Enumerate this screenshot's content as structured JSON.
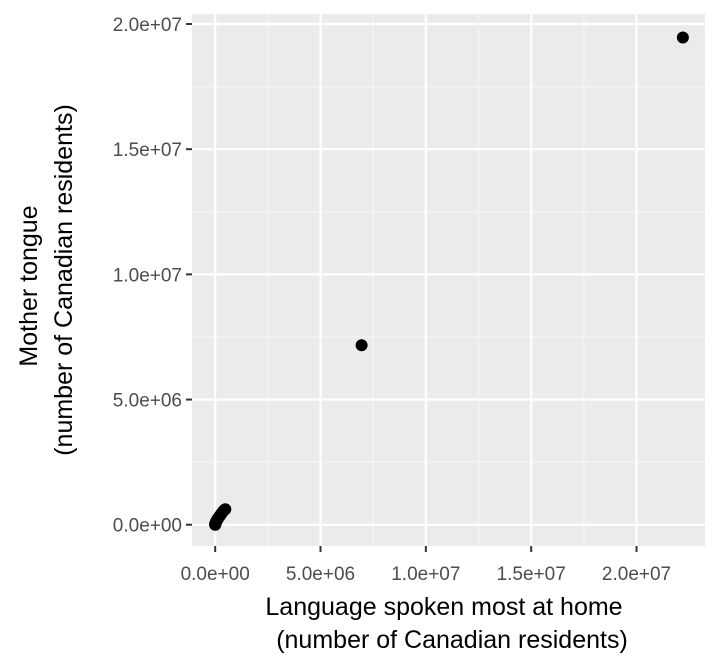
{
  "chart_data": {
    "type": "scatter",
    "title": "",
    "xlabel": [
      "Language spoken most at home",
      "(number of Canadian residents)"
    ],
    "ylabel": [
      "Mother tongue",
      "(number of Canadian residents)"
    ],
    "xlim": [
      -1100000,
      23250000
    ],
    "ylim": [
      -850000,
      20400000
    ],
    "x_ticks": [
      {
        "value": 0,
        "label": "0.0e+00"
      },
      {
        "value": 5000000,
        "label": "5.0e+06"
      },
      {
        "value": 10000000,
        "label": "1.0e+07"
      },
      {
        "value": 15000000,
        "label": "1.5e+07"
      },
      {
        "value": 20000000,
        "label": "2.0e+07"
      }
    ],
    "y_ticks": [
      {
        "value": 0,
        "label": "0.0e+00"
      },
      {
        "value": 5000000,
        "label": "5.0e+06"
      },
      {
        "value": 10000000,
        "label": "1.0e+07"
      },
      {
        "value": 15000000,
        "label": "1.5e+07"
      },
      {
        "value": 20000000,
        "label": "2.0e+07"
      }
    ],
    "grid": true,
    "colors": {
      "panel_background": "#ebebeb",
      "grid_major": "#ffffff",
      "grid_minor": "#f5f5f5",
      "point": "#000000",
      "tick_mark": "#333333"
    },
    "points": [
      {
        "x": 22200000,
        "y": 19460000
      },
      {
        "x": 6950000,
        "y": 7170000
      },
      {
        "x": 480000,
        "y": 620000
      },
      {
        "x": 420000,
        "y": 580000
      },
      {
        "x": 360000,
        "y": 520000
      },
      {
        "x": 300000,
        "y": 450000
      },
      {
        "x": 250000,
        "y": 390000
      },
      {
        "x": 200000,
        "y": 330000
      },
      {
        "x": 160000,
        "y": 280000
      },
      {
        "x": 120000,
        "y": 230000
      },
      {
        "x": 90000,
        "y": 190000
      },
      {
        "x": 60000,
        "y": 150000
      },
      {
        "x": 40000,
        "y": 110000
      },
      {
        "x": 25000,
        "y": 80000
      },
      {
        "x": 15000,
        "y": 55000
      },
      {
        "x": 10000,
        "y": 35000
      },
      {
        "x": 5000,
        "y": 20000
      },
      {
        "x": 2000,
        "y": 8000
      },
      {
        "x": 1000,
        "y": 3000
      },
      {
        "x": 300,
        "y": 900
      }
    ]
  }
}
